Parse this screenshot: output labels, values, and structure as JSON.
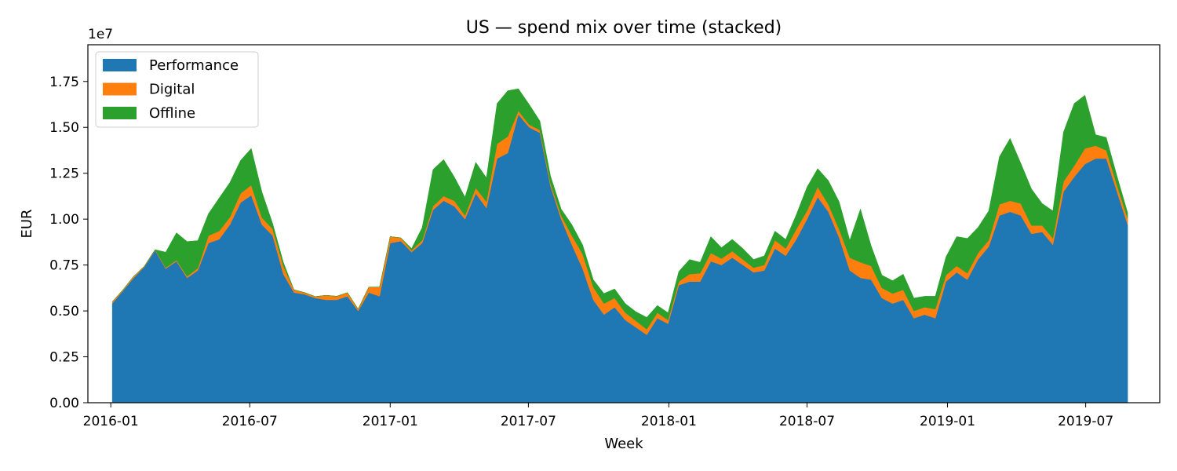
{
  "chart_data": {
    "type": "area",
    "stacked": true,
    "title": "US — spend mix over time (stacked)",
    "xlabel": "Week",
    "ylabel": "EUR",
    "y_offset_text": "1e7",
    "y_scale": 10000000,
    "xlim": [
      "2015-12-02",
      "2019-10-06"
    ],
    "ylim": [
      0,
      19500000
    ],
    "yticks": [
      0,
      2500000,
      5000000,
      7500000,
      10000000,
      12500000,
      15000000,
      17500000
    ],
    "ytick_labels": [
      "0.00",
      "0.25",
      "0.50",
      "0.75",
      "1.00",
      "1.25",
      "1.50",
      "1.75"
    ],
    "xticks": [
      "2016-01-01",
      "2016-07-01",
      "2017-01-01",
      "2017-07-01",
      "2018-01-01",
      "2018-07-01",
      "2019-01-01",
      "2019-07-01"
    ],
    "xtick_labels": [
      "2016-01",
      "2016-07",
      "2017-01",
      "2017-07",
      "2018-01",
      "2018-07",
      "2019-01",
      "2019-07"
    ],
    "grid": false,
    "legend_position": "top-left",
    "colors": {
      "Performance": "#1f77b4",
      "Digital": "#ff7f0e",
      "Offline": "#2ca02c"
    },
    "x": [
      "2016-01-03",
      "2016-01-17",
      "2016-01-31",
      "2016-02-14",
      "2016-02-28",
      "2016-03-13",
      "2016-03-27",
      "2016-04-10",
      "2016-04-24",
      "2016-05-08",
      "2016-05-22",
      "2016-06-05",
      "2016-06-19",
      "2016-07-03",
      "2016-07-17",
      "2016-07-31",
      "2016-08-14",
      "2016-08-28",
      "2016-09-11",
      "2016-09-25",
      "2016-10-09",
      "2016-10-23",
      "2016-11-06",
      "2016-11-20",
      "2016-12-04",
      "2016-12-18",
      "2017-01-01",
      "2017-01-15",
      "2017-01-29",
      "2017-02-12",
      "2017-02-26",
      "2017-03-12",
      "2017-03-26",
      "2017-04-09",
      "2017-04-23",
      "2017-05-07",
      "2017-05-21",
      "2017-06-04",
      "2017-06-18",
      "2017-07-02",
      "2017-07-16",
      "2017-07-30",
      "2017-08-13",
      "2017-08-27",
      "2017-09-10",
      "2017-09-24",
      "2017-10-08",
      "2017-10-22",
      "2017-11-05",
      "2017-11-19",
      "2017-12-03",
      "2017-12-17",
      "2017-12-31",
      "2018-01-14",
      "2018-01-28",
      "2018-02-11",
      "2018-02-25",
      "2018-03-11",
      "2018-03-25",
      "2018-04-08",
      "2018-04-22",
      "2018-05-06",
      "2018-05-20",
      "2018-06-03",
      "2018-06-17",
      "2018-07-01",
      "2018-07-15",
      "2018-07-29",
      "2018-08-12",
      "2018-08-26",
      "2018-09-09",
      "2018-09-23",
      "2018-10-07",
      "2018-10-21",
      "2018-11-04",
      "2018-11-18",
      "2018-12-02",
      "2018-12-16",
      "2018-12-30",
      "2019-01-13",
      "2019-01-27",
      "2019-02-10",
      "2019-02-24",
      "2019-03-10",
      "2019-03-24",
      "2019-04-07",
      "2019-04-21",
      "2019-05-05",
      "2019-05-19",
      "2019-06-02",
      "2019-06-16",
      "2019-06-30",
      "2019-07-14",
      "2019-07-28",
      "2019-08-11",
      "2019-08-25"
    ],
    "series": [
      {
        "name": "Performance",
        "values": [
          5400000,
          6100000,
          6800000,
          7400000,
          8300000,
          7300000,
          7700000,
          6800000,
          7200000,
          8700000,
          8900000,
          9700000,
          10900000,
          11300000,
          9700000,
          9100000,
          7000000,
          6000000,
          5900000,
          5700000,
          5600000,
          5600000,
          5800000,
          5000000,
          6000000,
          5800000,
          8700000,
          8800000,
          8200000,
          8700000,
          10500000,
          11000000,
          10700000,
          10000000,
          11400000,
          10600000,
          13300000,
          13600000,
          15700000,
          15000000,
          14700000,
          11800000,
          10000000,
          8600000,
          7300000,
          5600000,
          4800000,
          5200000,
          4500000,
          4100000,
          3700000,
          4600000,
          4300000,
          6400000,
          6600000,
          6600000,
          7700000,
          7500000,
          7900000,
          7500000,
          7100000,
          7200000,
          8400000,
          8000000,
          8900000,
          10000000,
          11200000,
          10400000,
          9000000,
          7200000,
          6800000,
          6700000,
          5700000,
          5400000,
          5600000,
          4600000,
          4800000,
          4600000,
          6600000,
          7100000,
          6700000,
          7800000,
          8500000,
          10200000,
          10400000,
          10200000,
          9200000,
          9300000,
          8600000,
          11500000,
          12300000,
          13000000,
          13300000,
          13300000,
          11500000,
          9700000
        ]
      },
      {
        "name": "Digital",
        "values": [
          100000,
          60000,
          90000,
          40000,
          40000,
          50000,
          60000,
          80000,
          130000,
          400000,
          450000,
          400000,
          500000,
          550000,
          380000,
          360000,
          450000,
          150000,
          100000,
          80000,
          250000,
          200000,
          200000,
          100000,
          300000,
          500000,
          350000,
          180000,
          100000,
          150000,
          200000,
          250000,
          300000,
          200000,
          300000,
          350000,
          800000,
          900000,
          200000,
          150000,
          150000,
          150000,
          200000,
          500000,
          800000,
          700000,
          600000,
          500000,
          400000,
          350000,
          300000,
          300000,
          200000,
          200000,
          400000,
          450000,
          450000,
          350000,
          350000,
          300000,
          250000,
          300000,
          450000,
          400000,
          550000,
          450000,
          550000,
          400000,
          450000,
          700000,
          850000,
          750000,
          550000,
          550000,
          550000,
          400000,
          400000,
          500000,
          350000,
          350000,
          350000,
          350000,
          350000,
          600000,
          600000,
          650000,
          450000,
          350000,
          350000,
          550000,
          600000,
          850000,
          700000,
          450000,
          350000,
          350000
        ]
      },
      {
        "name": "Offline",
        "values": [
          0,
          0,
          0,
          0,
          0,
          850000,
          1500000,
          1900000,
          1500000,
          1200000,
          1800000,
          1900000,
          1800000,
          2000000,
          1400000,
          300000,
          200000,
          0,
          0,
          0,
          0,
          0,
          0,
          0,
          0,
          0,
          0,
          0,
          100000,
          700000,
          2000000,
          2000000,
          1300000,
          1000000,
          1400000,
          1300000,
          2200000,
          2500000,
          1200000,
          1100000,
          500000,
          400000,
          350000,
          600000,
          500000,
          400000,
          550000,
          500000,
          500000,
          500000,
          650000,
          400000,
          400000,
          550000,
          800000,
          600000,
          900000,
          600000,
          650000,
          600000,
          450000,
          500000,
          500000,
          500000,
          800000,
          1300000,
          1000000,
          1300000,
          1500000,
          950000,
          2900000,
          1100000,
          700000,
          700000,
          850000,
          700000,
          600000,
          700000,
          1000000,
          1600000,
          1900000,
          1400000,
          1600000,
          2600000,
          3400000,
          2200000,
          2000000,
          1200000,
          1500000,
          2700000,
          3400000,
          2900000,
          600000,
          700000,
          500000,
          300000
        ]
      }
    ]
  }
}
